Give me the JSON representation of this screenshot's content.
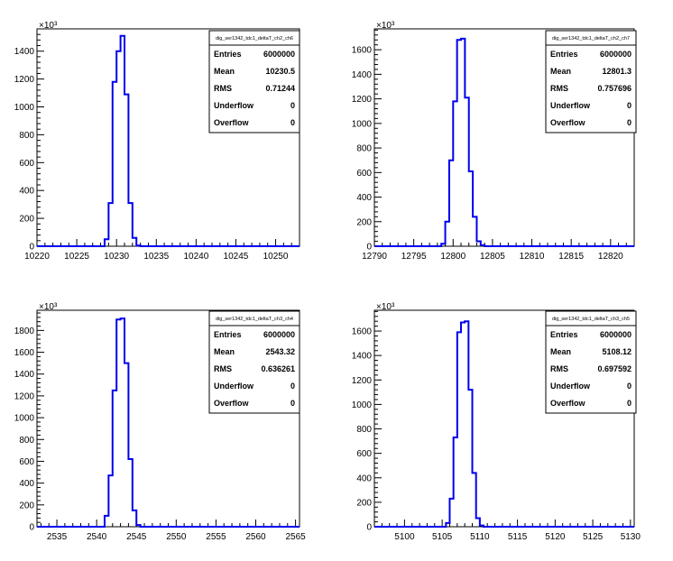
{
  "chart_data": [
    {
      "type": "histogram",
      "title": "dig_ser1342_tdc1_deltaT_ch2_ch6",
      "xlim": [
        10220,
        10253
      ],
      "ylim": [
        0,
        1560
      ],
      "y_multiplier": "×10³",
      "xticks": [
        10220,
        10225,
        10230,
        10235,
        10240,
        10245,
        10250
      ],
      "yticks": [
        0,
        200,
        400,
        600,
        800,
        1000,
        1200,
        1400
      ],
      "bins": [
        {
          "x0": 10228.5,
          "x1": 10229.0,
          "y": 50
        },
        {
          "x0": 10229.0,
          "x1": 10229.5,
          "y": 310
        },
        {
          "x0": 10229.5,
          "x1": 10230.0,
          "y": 1180
        },
        {
          "x0": 10230.0,
          "x1": 10230.5,
          "y": 1400
        },
        {
          "x0": 10230.5,
          "x1": 10231.0,
          "y": 1510
        },
        {
          "x0": 10231.0,
          "x1": 10231.5,
          "y": 1090
        },
        {
          "x0": 10231.5,
          "x1": 10232.0,
          "y": 310
        },
        {
          "x0": 10232.0,
          "x1": 10232.5,
          "y": 60
        },
        {
          "x0": 10232.5,
          "x1": 10233.0,
          "y": 5
        }
      ],
      "stats": [
        {
          "label": "Entries",
          "value": "6000000"
        },
        {
          "label": "Mean",
          "value": "10230.5"
        },
        {
          "label": "RMS",
          "value": "0.71244"
        },
        {
          "label": "Underflow",
          "value": "0"
        },
        {
          "label": "Overflow",
          "value": "0"
        }
      ]
    },
    {
      "type": "histogram",
      "title": "dig_ser1342_tdc1_deltaT_ch2_ch7",
      "xlim": [
        12790,
        12823
      ],
      "ylim": [
        0,
        1770
      ],
      "y_multiplier": "×10³",
      "xticks": [
        12790,
        12795,
        12800,
        12805,
        12810,
        12815,
        12820
      ],
      "yticks": [
        0,
        200,
        400,
        600,
        800,
        1000,
        1200,
        1400,
        1600
      ],
      "bins": [
        {
          "x0": 12798.5,
          "x1": 12799.0,
          "y": 20
        },
        {
          "x0": 12799.0,
          "x1": 12799.5,
          "y": 200
        },
        {
          "x0": 12799.5,
          "x1": 12800.0,
          "y": 700
        },
        {
          "x0": 12800.0,
          "x1": 12800.5,
          "y": 1180
        },
        {
          "x0": 12800.5,
          "x1": 12801.0,
          "y": 1680
        },
        {
          "x0": 12801.0,
          "x1": 12801.5,
          "y": 1690
        },
        {
          "x0": 12801.5,
          "x1": 12802.0,
          "y": 1210
        },
        {
          "x0": 12802.0,
          "x1": 12802.5,
          "y": 610
        },
        {
          "x0": 12802.5,
          "x1": 12803.0,
          "y": 240
        },
        {
          "x0": 12803.0,
          "x1": 12803.5,
          "y": 40
        },
        {
          "x0": 12803.5,
          "x1": 12804.0,
          "y": 8
        }
      ],
      "stats": [
        {
          "label": "Entries",
          "value": "6000000"
        },
        {
          "label": "Mean",
          "value": "12801.3"
        },
        {
          "label": "RMS",
          "value": "0.757696"
        },
        {
          "label": "Underflow",
          "value": "0"
        },
        {
          "label": "Overflow",
          "value": "0"
        }
      ]
    },
    {
      "type": "histogram",
      "title": "dig_ser1342_tdc1_deltaT_ch3_ch4",
      "xlim": [
        2532.5,
        2565.5
      ],
      "ylim": [
        0,
        1985
      ],
      "y_multiplier": "×10³",
      "xticks": [
        2535,
        2540,
        2545,
        2550,
        2555,
        2560,
        2565
      ],
      "yticks": [
        0,
        200,
        400,
        600,
        800,
        1000,
        1200,
        1400,
        1600,
        1800
      ],
      "bins": [
        {
          "x0": 2541.0,
          "x1": 2541.5,
          "y": 100
        },
        {
          "x0": 2541.5,
          "x1": 2542.0,
          "y": 470
        },
        {
          "x0": 2542.0,
          "x1": 2542.5,
          "y": 1250
        },
        {
          "x0": 2542.5,
          "x1": 2543.0,
          "y": 1900
        },
        {
          "x0": 2543.0,
          "x1": 2543.5,
          "y": 1910
        },
        {
          "x0": 2543.5,
          "x1": 2544.0,
          "y": 1500
        },
        {
          "x0": 2544.0,
          "x1": 2544.5,
          "y": 620
        },
        {
          "x0": 2544.5,
          "x1": 2545.0,
          "y": 150
        },
        {
          "x0": 2545.0,
          "x1": 2545.5,
          "y": 15
        }
      ],
      "stats": [
        {
          "label": "Entries",
          "value": "6000000"
        },
        {
          "label": "Mean",
          "value": "2543.32"
        },
        {
          "label": "RMS",
          "value": "0.636261"
        },
        {
          "label": "Underflow",
          "value": "0"
        },
        {
          "label": "Overflow",
          "value": "0"
        }
      ]
    },
    {
      "type": "histogram",
      "title": "dig_ser1342_tdc1_deltaT_ch3_ch5",
      "xlim": [
        5096,
        5130.5
      ],
      "ylim": [
        0,
        1770
      ],
      "y_multiplier": "×10³",
      "xticks": [
        5100,
        5105,
        5110,
        5115,
        5120,
        5125,
        5130
      ],
      "yticks": [
        0,
        200,
        400,
        600,
        800,
        1000,
        1200,
        1400,
        1600
      ],
      "bins": [
        {
          "x0": 5105.5,
          "x1": 5106.0,
          "y": 30
        },
        {
          "x0": 5106.0,
          "x1": 5106.5,
          "y": 230
        },
        {
          "x0": 5106.5,
          "x1": 5107.0,
          "y": 730
        },
        {
          "x0": 5107.0,
          "x1": 5107.5,
          "y": 1590
        },
        {
          "x0": 5107.5,
          "x1": 5108.0,
          "y": 1670
        },
        {
          "x0": 5108.0,
          "x1": 5108.5,
          "y": 1680
        },
        {
          "x0": 5108.5,
          "x1": 5109.0,
          "y": 1120
        },
        {
          "x0": 5109.0,
          "x1": 5109.5,
          "y": 440
        },
        {
          "x0": 5109.5,
          "x1": 5110.0,
          "y": 70
        },
        {
          "x0": 5110.0,
          "x1": 5110.5,
          "y": 10
        }
      ],
      "stats": [
        {
          "label": "Entries",
          "value": "6000000"
        },
        {
          "label": "Mean",
          "value": "5108.12"
        },
        {
          "label": "RMS",
          "value": "0.697592"
        },
        {
          "label": "Underflow",
          "value": "0"
        },
        {
          "label": "Overflow",
          "value": "0"
        }
      ]
    }
  ],
  "colors": {
    "histogram_line": "#0000ee",
    "frame": "#000000",
    "background": "#ffffff"
  }
}
